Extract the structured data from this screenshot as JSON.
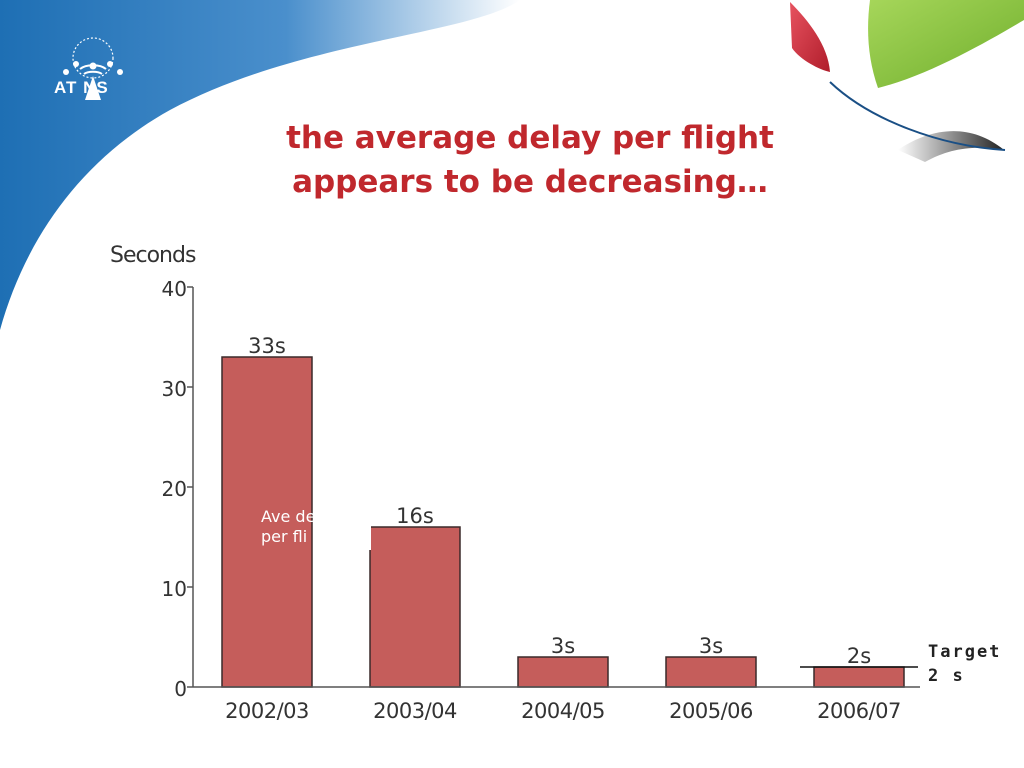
{
  "slide": {
    "logo_text": "AT NS",
    "title_line_1": "the average delay per flight",
    "title_line_2": "appears to be decreasing…",
    "colors": {
      "title": "#c0282d",
      "bar": "#c55d5b",
      "swoosh_blue": "#1e6fb4",
      "accent_red": "#d8293a",
      "accent_green": "#8dc63f"
    }
  },
  "chart_data": {
    "type": "bar",
    "ylabel": "Seconds",
    "ylim": [
      0,
      40
    ],
    "yticks": [
      0,
      10,
      20,
      30,
      40
    ],
    "categories": [
      "2002/03",
      "2003/04",
      "2004/05",
      "2005/06",
      "2006/07"
    ],
    "values": [
      33,
      16,
      3,
      3,
      2
    ],
    "data_labels": [
      "33s",
      "16s",
      "3s",
      "3s",
      "2s"
    ],
    "legend_partial_lines": [
      "Ave de",
      "per fli"
    ],
    "target": {
      "value": 2,
      "label_line_1": "Target",
      "label_line_2": "2 s"
    },
    "grid": false
  }
}
